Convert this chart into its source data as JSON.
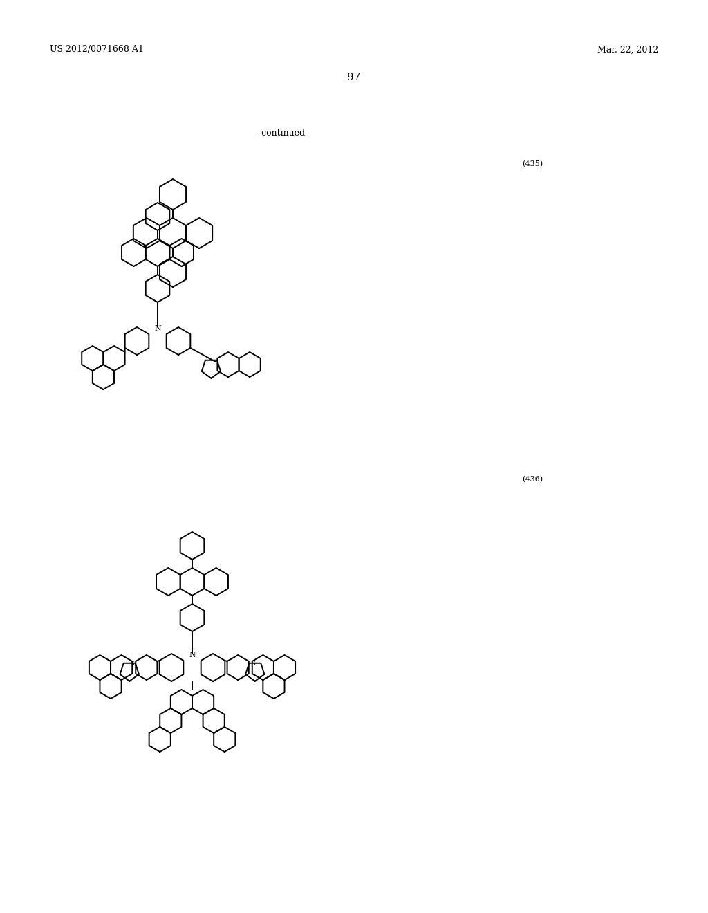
{
  "background_color": "#ffffff",
  "page_number": "97",
  "patent_number": "US 2012/0071668 A1",
  "patent_date": "Mar. 22, 2012",
  "continued_text": "-continued",
  "compound_435_label": "(435)",
  "compound_436_label": "(436)"
}
